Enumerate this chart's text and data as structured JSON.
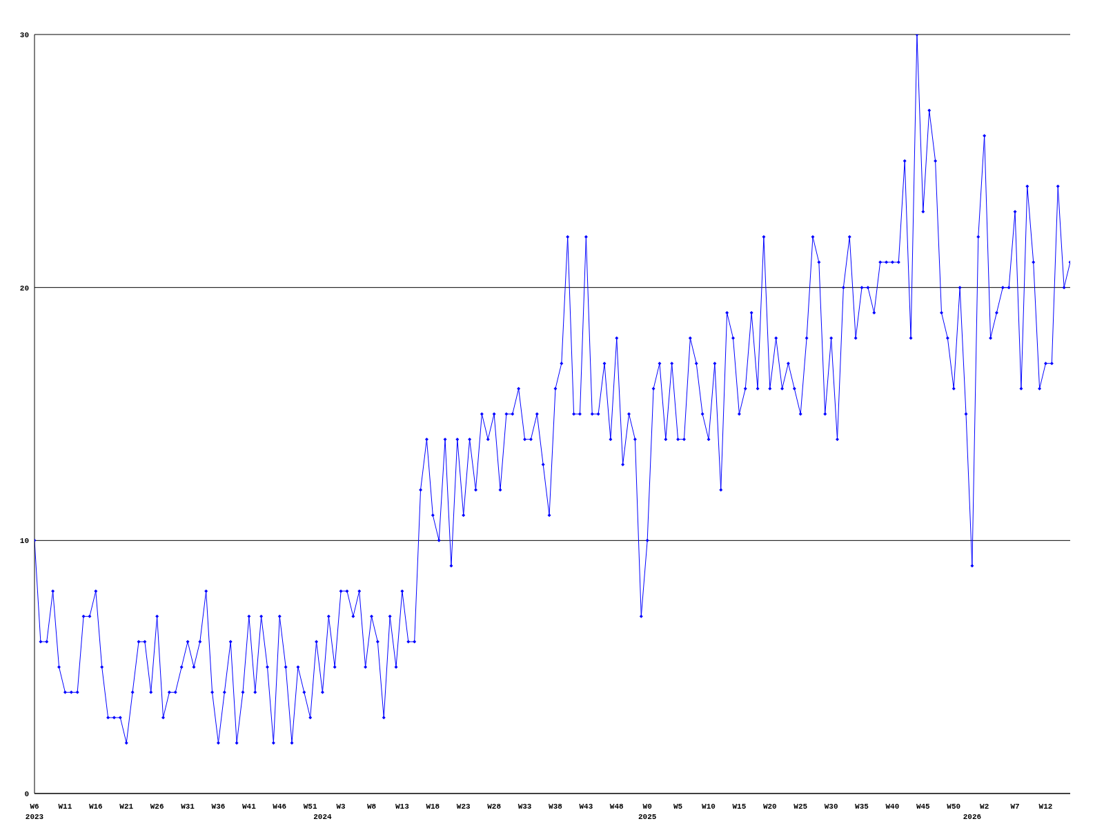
{
  "chart_data": {
    "type": "line",
    "annotations": [
      "2023",
      "2024",
      "2025",
      "2026"
    ],
    "categories": [
      "W6",
      null,
      null,
      null,
      null,
      "W11",
      null,
      null,
      null,
      null,
      "W16",
      null,
      null,
      null,
      null,
      "W21",
      null,
      null,
      null,
      null,
      "W26",
      null,
      null,
      null,
      null,
      "W31",
      null,
      null,
      null,
      null,
      "W36",
      null,
      null,
      null,
      null,
      "W41",
      null,
      null,
      null,
      null,
      "W46",
      null,
      null,
      null,
      null,
      "W51",
      null,
      null,
      null,
      null,
      "W3",
      null,
      null,
      null,
      null,
      "W8",
      null,
      null,
      null,
      null,
      "W13",
      null,
      null,
      null,
      null,
      "W18",
      null,
      null,
      null,
      null,
      "W23",
      null,
      null,
      null,
      null,
      "W28",
      null,
      null,
      null,
      null,
      "W33",
      null,
      null,
      null,
      null,
      "W38",
      null,
      null,
      null,
      null,
      "W43",
      null,
      null,
      null,
      null,
      "W48",
      null,
      null,
      null,
      null,
      "W0",
      null,
      null,
      null,
      null,
      "W5",
      null,
      null,
      null,
      null,
      "W10",
      null,
      null,
      null,
      null,
      "W15",
      null,
      null,
      null,
      null,
      "W20",
      null,
      null,
      null,
      null,
      "W25",
      null,
      null,
      null,
      null,
      "W30",
      null,
      null,
      null,
      null,
      "W35",
      null,
      null,
      null,
      null,
      "W40",
      null,
      null,
      null,
      null,
      "W45",
      null,
      null,
      null,
      null,
      "W50",
      null,
      null,
      null,
      null,
      "W2",
      null,
      null,
      null,
      null,
      "W7",
      null,
      null,
      null,
      null,
      "W12",
      null,
      null,
      null,
      null
    ],
    "series": [
      {
        "color": "#0000ff",
        "values": [
          10,
          6,
          6,
          8,
          5,
          4,
          4,
          4,
          7,
          7,
          8,
          5,
          3,
          3,
          3,
          2,
          4,
          6,
          6,
          4,
          7,
          3,
          4,
          4,
          5,
          6,
          5,
          6,
          8,
          4,
          2,
          4,
          6,
          2,
          4,
          7,
          4,
          7,
          5,
          2,
          7,
          5,
          2,
          5,
          4,
          3,
          6,
          4,
          7,
          5,
          8,
          8,
          7,
          8,
          5,
          7,
          6,
          3,
          7,
          5,
          8,
          6,
          6,
          12,
          14,
          11,
          10,
          14,
          9,
          14,
          11,
          14,
          12,
          15,
          14,
          15,
          12,
          15,
          15,
          16,
          14,
          14,
          15,
          13,
          11,
          16,
          17,
          22,
          15,
          15,
          22,
          15,
          15,
          17,
          14,
          18,
          13,
          15,
          14,
          7,
          10,
          16,
          17,
          14,
          17,
          14,
          14,
          18,
          17,
          15,
          14,
          17,
          12,
          19,
          18,
          15,
          16,
          19,
          16,
          22,
          16,
          18,
          16,
          17,
          16,
          15,
          18,
          22,
          21,
          15,
          18,
          14,
          20,
          22,
          18,
          20,
          20,
          19,
          21,
          21,
          21,
          21,
          25,
          18,
          30,
          23,
          27,
          25,
          19,
          18,
          16,
          20,
          15,
          9,
          22,
          26,
          18,
          19,
          20,
          20,
          23,
          16,
          24,
          21,
          16,
          17,
          17,
          24,
          20,
          21
        ]
      }
    ],
    "ylim": [
      0,
      30
    ],
    "yticks": [
      0,
      10,
      20,
      30
    ],
    "grid": "y",
    "marker": "diamond",
    "line_style": "solid"
  }
}
